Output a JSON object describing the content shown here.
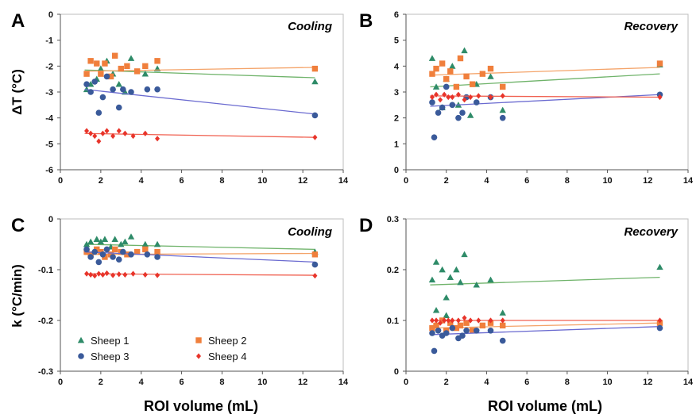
{
  "colors": {
    "Sheep 1": "#2e8b68",
    "Sheep 2": "#f07f3c",
    "Sheep 3": "#3a5a9a",
    "Sheep 4": "#e8342a",
    "fit_Sheep 1": "#6fb36a",
    "fit_Sheep 2": "#f4a46a",
    "fit_Sheep 3": "#6a6ad0",
    "fit_Sheep 4": "#f06050"
  },
  "markers": {
    "Sheep 1": "triangle",
    "Sheep 2": "square",
    "Sheep 3": "circle",
    "Sheep 4": "diamond"
  },
  "legend": {
    "placement": "bottom-left",
    "panel": "C",
    "entries": [
      "Sheep 1",
      "Sheep 2",
      "Sheep 3",
      "Sheep 4"
    ]
  },
  "ylabels": {
    "top": "ΔT (°C)",
    "bottom": "k (°C/min)"
  },
  "xlabels": {
    "left": "ROI volume (mL)",
    "right": "ROI volume (mL)"
  },
  "chart_data": [
    {
      "panel": "A",
      "condition": "Cooling",
      "type": "scatter",
      "xlim": [
        0,
        14
      ],
      "ylim": [
        -6,
        0
      ],
      "xticks": [
        "0",
        "2",
        "4",
        "6",
        "8",
        "10",
        "12",
        "14"
      ],
      "yticks": [
        "-6",
        "-5",
        "-4",
        "-3",
        "-2",
        "-1",
        "0"
      ],
      "series": [
        {
          "name": "Sheep 1",
          "x": [
            1.3,
            1.5,
            1.8,
            2.0,
            2.3,
            2.6,
            2.9,
            3.2,
            3.5,
            4.2,
            4.8,
            12.6
          ],
          "y": [
            -2.9,
            -2.7,
            -2.5,
            -2.1,
            -1.8,
            -2.3,
            -2.7,
            -3.0,
            -1.7,
            -2.3,
            -2.1,
            -2.6
          ],
          "fit": [
            [
              1.2,
              -2.15
            ],
            [
              12.6,
              -2.45
            ]
          ]
        },
        {
          "name": "Sheep 2",
          "x": [
            1.3,
            1.5,
            1.8,
            2.0,
            2.2,
            2.5,
            2.7,
            3.0,
            3.3,
            3.8,
            4.2,
            4.8,
            12.6
          ],
          "y": [
            -2.3,
            -1.8,
            -1.9,
            -2.3,
            -1.9,
            -2.4,
            -1.6,
            -2.1,
            -2.0,
            -2.2,
            -2.0,
            -1.8,
            -2.1
          ],
          "fit": [
            [
              1.2,
              -2.2
            ],
            [
              12.6,
              -2.05
            ]
          ]
        },
        {
          "name": "Sheep 3",
          "x": [
            1.3,
            1.5,
            1.7,
            1.9,
            2.1,
            2.3,
            2.6,
            2.9,
            3.1,
            3.5,
            4.3,
            4.8,
            12.6
          ],
          "y": [
            -2.7,
            -3.0,
            -2.6,
            -3.8,
            -3.2,
            -2.4,
            -2.9,
            -3.6,
            -2.9,
            -3.0,
            -2.9,
            -2.9,
            -3.9
          ],
          "fit": [
            [
              1.2,
              -2.9
            ],
            [
              12.6,
              -3.85
            ]
          ]
        },
        {
          "name": "Sheep 4",
          "x": [
            1.3,
            1.5,
            1.7,
            1.9,
            2.1,
            2.3,
            2.6,
            2.9,
            3.2,
            3.6,
            4.2,
            4.8,
            12.6
          ],
          "y": [
            -4.5,
            -4.6,
            -4.7,
            -4.9,
            -4.6,
            -4.5,
            -4.7,
            -4.5,
            -4.6,
            -4.7,
            -4.6,
            -4.8,
            -4.75
          ],
          "fit": [
            [
              1.2,
              -4.6
            ],
            [
              12.6,
              -4.75
            ]
          ]
        }
      ]
    },
    {
      "panel": "B",
      "condition": "Recovery",
      "type": "scatter",
      "xlim": [
        0,
        14
      ],
      "ylim": [
        0,
        6
      ],
      "xticks": [
        "0",
        "2",
        "4",
        "6",
        "8",
        "10",
        "12",
        "14"
      ],
      "yticks": [
        "0",
        "1",
        "2",
        "3",
        "4",
        "5",
        "6"
      ],
      "series": [
        {
          "name": "Sheep 1",
          "x": [
            1.3,
            1.5,
            1.8,
            2.0,
            2.3,
            2.6,
            2.9,
            3.2,
            3.5,
            4.2,
            4.8,
            12.6
          ],
          "y": [
            4.3,
            3.2,
            2.4,
            3.5,
            4.0,
            2.5,
            4.6,
            2.1,
            3.3,
            3.6,
            2.3,
            4.05
          ],
          "fit": [
            [
              1.2,
              3.2
            ],
            [
              12.6,
              3.7
            ]
          ]
        },
        {
          "name": "Sheep 2",
          "x": [
            1.3,
            1.5,
            1.8,
            2.0,
            2.2,
            2.5,
            2.7,
            3.0,
            3.3,
            3.8,
            4.2,
            4.8,
            12.6
          ],
          "y": [
            3.7,
            3.9,
            4.1,
            3.5,
            3.8,
            3.2,
            4.3,
            3.6,
            3.3,
            3.7,
            3.9,
            3.2,
            4.1
          ],
          "fit": [
            [
              1.2,
              3.65
            ],
            [
              12.6,
              3.95
            ]
          ]
        },
        {
          "name": "Sheep 3",
          "x": [
            1.3,
            1.4,
            1.6,
            1.8,
            2.0,
            2.3,
            2.6,
            2.8,
            3.0,
            3.5,
            4.2,
            4.8,
            12.6
          ],
          "y": [
            2.6,
            1.25,
            2.2,
            2.4,
            3.2,
            2.5,
            2.0,
            2.2,
            2.8,
            2.6,
            2.8,
            2.0,
            2.9
          ],
          "fit": [
            [
              1.2,
              2.45
            ],
            [
              12.6,
              2.9
            ]
          ]
        },
        {
          "name": "Sheep 4",
          "x": [
            1.3,
            1.5,
            1.7,
            1.9,
            2.1,
            2.3,
            2.6,
            2.9,
            3.2,
            3.6,
            4.2,
            4.8,
            12.6
          ],
          "y": [
            2.8,
            2.9,
            2.7,
            2.9,
            2.8,
            2.8,
            2.9,
            2.7,
            2.8,
            2.85,
            2.8,
            2.85,
            2.8
          ],
          "fit": [
            [
              1.2,
              2.85
            ],
            [
              12.6,
              2.8
            ]
          ]
        }
      ]
    },
    {
      "panel": "C",
      "condition": "Cooling",
      "type": "scatter",
      "xlim": [
        0,
        14
      ],
      "ylim": [
        -0.3,
        0
      ],
      "xticks": [
        "0",
        "2",
        "4",
        "6",
        "8",
        "10",
        "12",
        "14"
      ],
      "yticks": [
        "-0.3",
        "-0.2",
        "-0.1",
        "0"
      ],
      "series": [
        {
          "name": "Sheep 1",
          "x": [
            1.3,
            1.5,
            1.8,
            2.0,
            2.2,
            2.5,
            2.7,
            3.0,
            3.2,
            3.5,
            4.2,
            4.8,
            12.6
          ],
          "y": [
            -0.05,
            -0.045,
            -0.04,
            -0.045,
            -0.04,
            -0.055,
            -0.04,
            -0.05,
            -0.045,
            -0.035,
            -0.05,
            -0.05,
            -0.065
          ],
          "fit": [
            [
              1.2,
              -0.05
            ],
            [
              12.6,
              -0.06
            ]
          ]
        },
        {
          "name": "Sheep 2",
          "x": [
            1.3,
            1.5,
            1.8,
            2.0,
            2.2,
            2.5,
            2.7,
            3.0,
            3.3,
            3.8,
            4.2,
            4.8,
            12.6
          ],
          "y": [
            -0.065,
            -0.07,
            -0.06,
            -0.065,
            -0.075,
            -0.07,
            -0.06,
            -0.065,
            -0.07,
            -0.065,
            -0.06,
            -0.065,
            -0.07
          ],
          "fit": [
            [
              1.2,
              -0.07
            ],
            [
              12.6,
              -0.068
            ]
          ]
        },
        {
          "name": "Sheep 3",
          "x": [
            1.3,
            1.5,
            1.7,
            1.9,
            2.1,
            2.3,
            2.6,
            2.9,
            3.1,
            3.5,
            4.3,
            4.8,
            12.6
          ],
          "y": [
            -0.06,
            -0.075,
            -0.065,
            -0.085,
            -0.07,
            -0.06,
            -0.075,
            -0.08,
            -0.065,
            -0.07,
            -0.07,
            -0.075,
            -0.09
          ],
          "fit": [
            [
              1.2,
              -0.065
            ],
            [
              12.6,
              -0.085
            ]
          ]
        },
        {
          "name": "Sheep 4",
          "x": [
            1.3,
            1.5,
            1.7,
            1.9,
            2.1,
            2.3,
            2.6,
            2.9,
            3.2,
            3.6,
            4.2,
            4.8,
            12.6
          ],
          "y": [
            -0.108,
            -0.11,
            -0.112,
            -0.108,
            -0.11,
            -0.107,
            -0.111,
            -0.109,
            -0.11,
            -0.108,
            -0.11,
            -0.111,
            -0.112
          ],
          "fit": [
            [
              1.2,
              -0.108
            ],
            [
              12.6,
              -0.111
            ]
          ]
        }
      ],
      "legend": [
        "Sheep 1",
        "Sheep 2",
        "Sheep 3",
        "Sheep 4"
      ]
    },
    {
      "panel": "D",
      "condition": "Recovery",
      "type": "scatter",
      "xlim": [
        0,
        14
      ],
      "ylim": [
        0,
        0.3
      ],
      "xticks": [
        "0",
        "2",
        "4",
        "6",
        "8",
        "10",
        "12",
        "14"
      ],
      "yticks": [
        "0",
        "0.1",
        "0.2",
        "0.3"
      ],
      "series": [
        {
          "name": "Sheep 1",
          "x": [
            1.3,
            1.5,
            1.8,
            2.0,
            2.2,
            2.5,
            2.7,
            2.9,
            3.5,
            4.2,
            4.8,
            12.6,
            1.5,
            2.0
          ],
          "y": [
            0.18,
            0.215,
            0.2,
            0.145,
            0.185,
            0.2,
            0.175,
            0.23,
            0.17,
            0.18,
            0.115,
            0.205,
            0.12,
            0.11
          ],
          "fit": [
            [
              1.2,
              0.17
            ],
            [
              12.6,
              0.185
            ]
          ]
        },
        {
          "name": "Sheep 2",
          "x": [
            1.3,
            1.5,
            1.8,
            2.0,
            2.2,
            2.5,
            2.7,
            3.0,
            3.3,
            3.8,
            4.2,
            4.8,
            12.6
          ],
          "y": [
            0.085,
            0.09,
            0.1,
            0.08,
            0.095,
            0.085,
            0.09,
            0.095,
            0.08,
            0.09,
            0.095,
            0.09,
            0.095
          ],
          "fit": [
            [
              1.2,
              0.085
            ],
            [
              12.6,
              0.095
            ]
          ]
        },
        {
          "name": "Sheep 3",
          "x": [
            1.3,
            1.4,
            1.6,
            1.8,
            2.0,
            2.3,
            2.6,
            2.8,
            3.0,
            3.5,
            4.2,
            4.8,
            12.6
          ],
          "y": [
            0.075,
            0.04,
            0.08,
            0.07,
            0.075,
            0.085,
            0.065,
            0.07,
            0.08,
            0.08,
            0.08,
            0.06,
            0.085
          ],
          "fit": [
            [
              1.2,
              0.072
            ],
            [
              12.6,
              0.088
            ]
          ]
        },
        {
          "name": "Sheep 4",
          "x": [
            1.3,
            1.5,
            1.7,
            1.9,
            2.1,
            2.3,
            2.6,
            2.9,
            3.2,
            3.6,
            4.2,
            4.8,
            12.6
          ],
          "y": [
            0.1,
            0.1,
            0.095,
            0.1,
            0.1,
            0.1,
            0.1,
            0.105,
            0.1,
            0.1,
            0.1,
            0.1,
            0.1
          ],
          "fit": [
            [
              1.2,
              0.1
            ],
            [
              12.6,
              0.1
            ]
          ]
        }
      ]
    }
  ]
}
